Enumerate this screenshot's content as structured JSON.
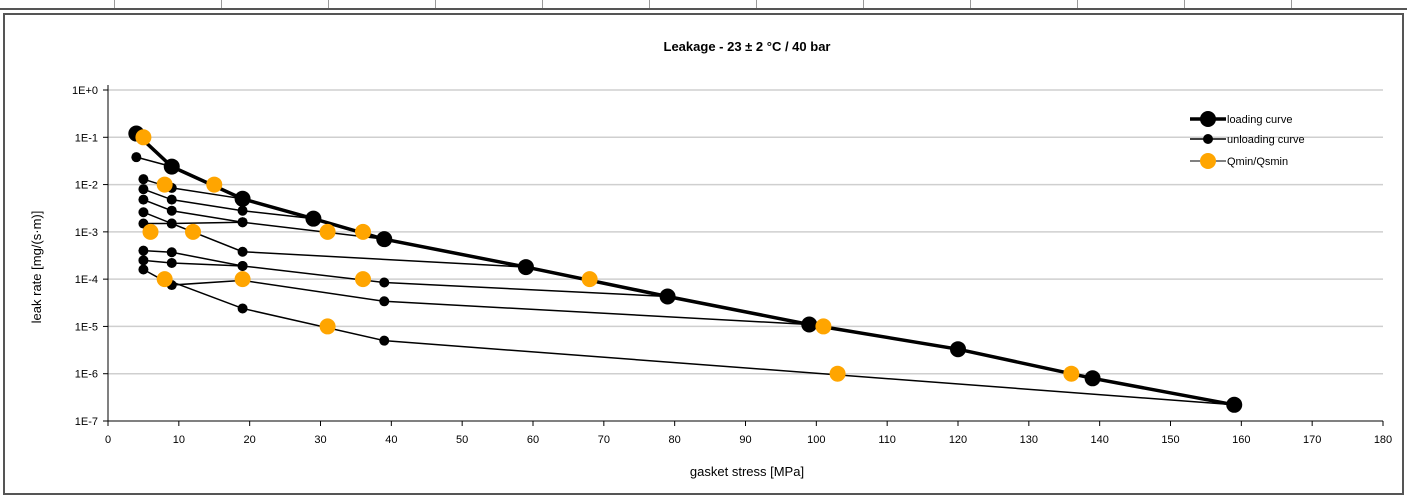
{
  "colors": {
    "series_black": "#000000",
    "series_orange": "#FFA500",
    "grid": "#cfcfcf",
    "frame": "#555555"
  },
  "chart_data": {
    "type": "scatter",
    "title": "Leakage - 23 ± 2 °C / 40 bar",
    "xlabel": "gasket stress [MPa]",
    "ylabel": "leak rate [mg/(s·m)]",
    "xlim": [
      0,
      180
    ],
    "xticks": [
      0,
      10,
      20,
      30,
      40,
      50,
      60,
      70,
      80,
      90,
      100,
      110,
      120,
      130,
      140,
      150,
      160,
      170,
      180
    ],
    "ylim": [
      1e-07,
      1
    ],
    "yscale": "log",
    "ytick_labels": [
      "1E+0",
      "1E-1",
      "1E-2",
      "1E-3",
      "1E-4",
      "1E-5",
      "1E-6",
      "1E-7"
    ],
    "ytick_values": [
      1,
      0.1,
      0.01,
      0.001,
      0.0001,
      1e-05,
      1e-06,
      1e-07
    ],
    "grid": "horizontal",
    "legend_position": "top-right",
    "legend": [
      "loading curve",
      "unloading curve",
      "Qmin/Qsmin"
    ],
    "series": [
      {
        "name": "loading curve",
        "color": "#000000",
        "points": [
          [
            4,
            0.12
          ],
          [
            9,
            0.024
          ],
          [
            19,
            0.005
          ],
          [
            29,
            0.0019
          ],
          [
            39,
            0.0007
          ],
          [
            59,
            0.00018
          ],
          [
            79,
            4.3e-05
          ],
          [
            99,
            1.1e-05
          ],
          [
            120,
            3.3e-06
          ],
          [
            139,
            8e-07
          ],
          [
            159,
            2.2e-07
          ]
        ]
      },
      {
        "name": "unloading curve",
        "color": "#000000",
        "curves": [
          [
            [
              4,
              0.038
            ],
            [
              9,
              0.024
            ]
          ],
          [
            [
              5,
              0.013
            ],
            [
              9,
              0.0085
            ],
            [
              19,
              0.005
            ]
          ],
          [
            [
              5,
              0.008
            ],
            [
              9,
              0.0048
            ],
            [
              19,
              0.0028
            ],
            [
              29,
              0.0019
            ]
          ],
          [
            [
              5,
              0.0048
            ],
            [
              9,
              0.0028
            ],
            [
              19,
              0.0016
            ],
            [
              39,
              0.0007
            ]
          ],
          [
            [
              5,
              0.0026
            ],
            [
              9,
              0.0015
            ],
            [
              19,
              0.0016
            ]
          ],
          [
            [
              5,
              0.0015
            ],
            [
              9,
              0.0015
            ],
            [
              19,
              0.00038
            ],
            [
              59,
              0.00018
            ]
          ],
          [
            [
              5,
              0.0004
            ],
            [
              9,
              0.00037
            ],
            [
              19,
              0.00019
            ],
            [
              39,
              8.5e-05
            ],
            [
              79,
              4.3e-05
            ]
          ],
          [
            [
              5,
              0.00025
            ],
            [
              9,
              0.00022
            ],
            [
              19,
              0.00019
            ]
          ],
          [
            [
              5,
              0.00016
            ],
            [
              9,
              7.5e-05
            ],
            [
              19,
              9.4e-05
            ],
            [
              39,
              3.4e-05
            ],
            [
              99,
              1.1e-05
            ]
          ],
          [
            [
              8,
              0.0001
            ],
            [
              19,
              2.4e-05
            ],
            [
              39,
              5e-06
            ],
            [
              159,
              2.2e-07
            ]
          ]
        ]
      },
      {
        "name": "Qmin/Qsmin",
        "color": "#FFA500",
        "points": [
          [
            5,
            0.1
          ],
          [
            8,
            0.01
          ],
          [
            15,
            0.01
          ],
          [
            6,
            0.001
          ],
          [
            12,
            0.001
          ],
          [
            31,
            0.001
          ],
          [
            36,
            0.001
          ],
          [
            8,
            0.0001
          ],
          [
            19,
            0.0001
          ],
          [
            36,
            0.0001
          ],
          [
            68,
            0.0001
          ],
          [
            31,
            1e-05
          ],
          [
            101,
            1e-05
          ],
          [
            103,
            1e-06
          ],
          [
            136,
            1e-06
          ]
        ]
      }
    ]
  }
}
